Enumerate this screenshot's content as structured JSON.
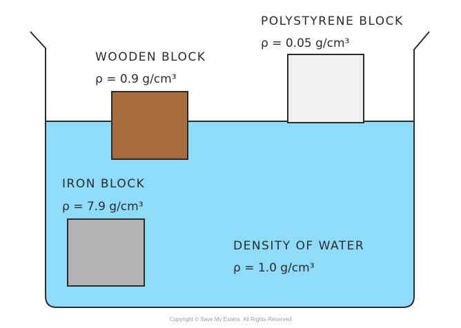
{
  "colors": {
    "water": "#8fdcfa",
    "outline": "#2a2a2a",
    "wood": "#a86b3c",
    "polystyrene": "#f0f0f0",
    "iron": "#b3b3b3"
  },
  "blocks": {
    "wooden": {
      "name": "WOODEN BLOCK",
      "density": "ρ = 0.9 g/cm³"
    },
    "polystyrene": {
      "name": "POLYSTYRENE BLOCK",
      "density": "ρ = 0.05 g/cm³"
    },
    "iron": {
      "name": "IRON BLOCK",
      "density": "ρ = 7.9 g/cm³"
    }
  },
  "water": {
    "name": "DENSITY OF WATER",
    "density": "ρ = 1.0 g/cm³"
  },
  "copyright": "Copyright © Save My Exams. All Rights Reserved"
}
